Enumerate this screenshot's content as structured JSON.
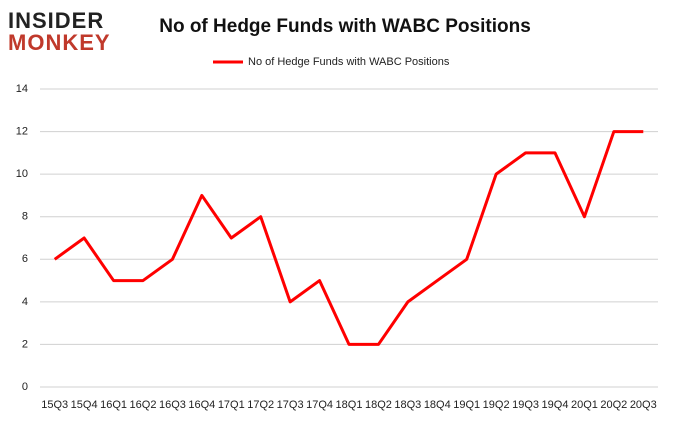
{
  "logo": {
    "line1": "INSIDER",
    "line2": "MONKEY"
  },
  "chart_data": {
    "type": "line",
    "title": "No of Hedge Funds with WABC Positions",
    "categories": [
      "15Q3",
      "15Q4",
      "16Q1",
      "16Q2",
      "16Q3",
      "16Q4",
      "17Q1",
      "17Q2",
      "17Q3",
      "17Q4",
      "18Q1",
      "18Q2",
      "18Q3",
      "18Q4",
      "19Q1",
      "19Q2",
      "19Q3",
      "19Q4",
      "20Q1",
      "20Q2",
      "20Q3"
    ],
    "series": [
      {
        "name": "No of Hedge Funds with WABC Positions",
        "color": "#ff0000",
        "values": [
          6,
          7,
          5,
          5,
          6,
          9,
          7,
          8,
          4,
          5,
          2,
          2,
          4,
          5,
          6,
          10,
          11,
          11,
          8,
          12,
          12
        ]
      }
    ],
    "ylim": [
      0,
      14
    ],
    "yticks": [
      0,
      2,
      4,
      6,
      8,
      10,
      12,
      14
    ],
    "grid": true,
    "legend": "top"
  }
}
